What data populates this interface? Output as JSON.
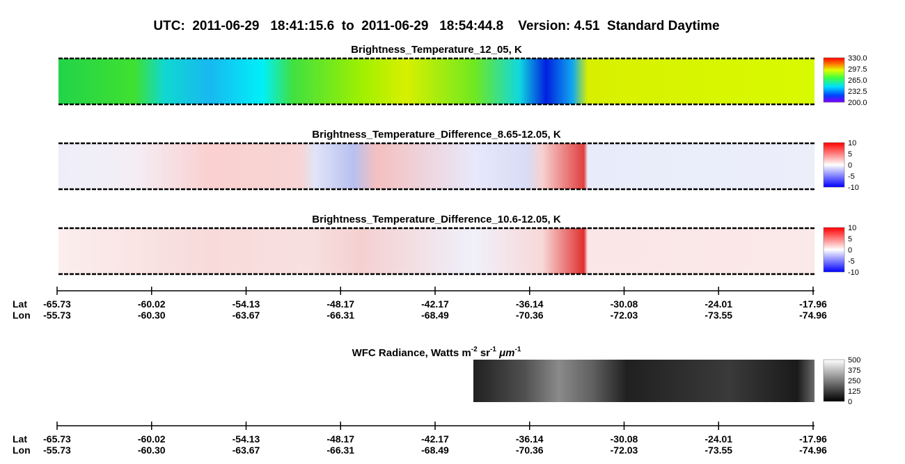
{
  "header": {
    "title": "UTC:  2011-06-29   18:41:15.6  to  2011-06-29   18:54:44.8    Version: 4.51  Standard Daytime"
  },
  "panels": [
    {
      "title": "Brightness_Temperature_12_05, K",
      "colorbar": [
        "330.0",
        "297.5",
        "265.0",
        "232.5",
        "200.0"
      ]
    },
    {
      "title": "Brightness_Temperature_Difference_8.65-12.05, K",
      "colorbar": [
        "10",
        "5",
        "0",
        "-5",
        "-10"
      ]
    },
    {
      "title": "Brightness_Temperature_Difference_10.6-12.05, K",
      "colorbar": [
        "10",
        "5",
        "0",
        "-5",
        "-10"
      ]
    }
  ],
  "axis": {
    "lat_label": "Lat",
    "lon_label": "Lon",
    "lat": [
      "-65.73",
      "-60.02",
      "-54.13",
      "-48.17",
      "-42.17",
      "-36.14",
      "-30.08",
      "-24.01",
      "-17.96"
    ],
    "lon": [
      "-55.73",
      "-60.30",
      "-63.67",
      "-66.31",
      "-68.49",
      "-70.36",
      "-72.03",
      "-73.55",
      "-74.96"
    ]
  },
  "wfc": {
    "title": [
      "WFC Radiance, Watts m",
      "-2",
      " sr",
      "-1",
      " μm",
      "-1"
    ],
    "colorbar": [
      "500",
      "375",
      "250",
      "125",
      "0"
    ]
  }
}
